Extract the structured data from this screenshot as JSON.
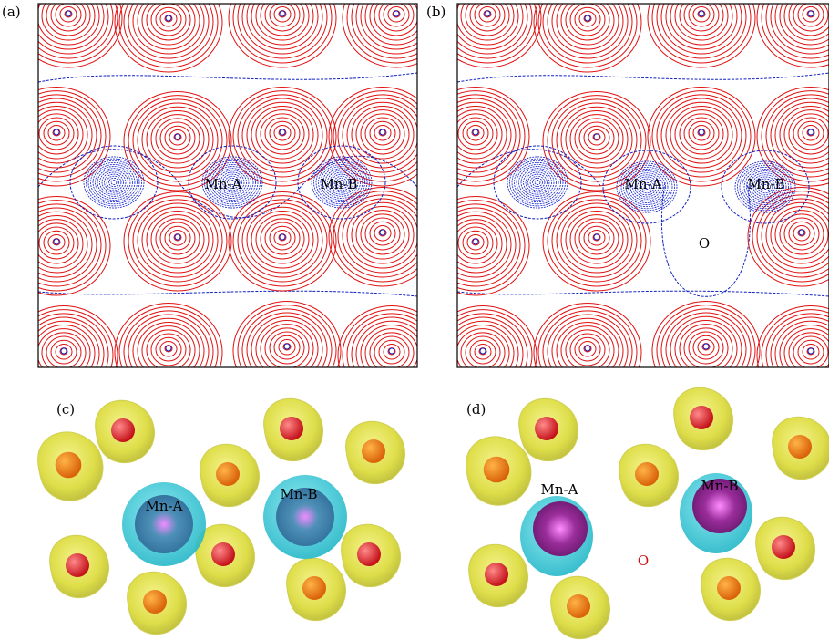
{
  "panels": [
    {
      "label": "(a)",
      "annotations": [
        "Mn-A",
        "Mn-B"
      ]
    },
    {
      "label": "(b)",
      "annotations": [
        "Mn-A",
        "Mn-B",
        "O"
      ]
    },
    {
      "label": "(c)",
      "annotations": [
        "Mn-A",
        "Mn-B"
      ]
    },
    {
      "label": "(d)",
      "annotations": [
        "Mn-A",
        "Mn-B",
        "O"
      ]
    }
  ]
}
